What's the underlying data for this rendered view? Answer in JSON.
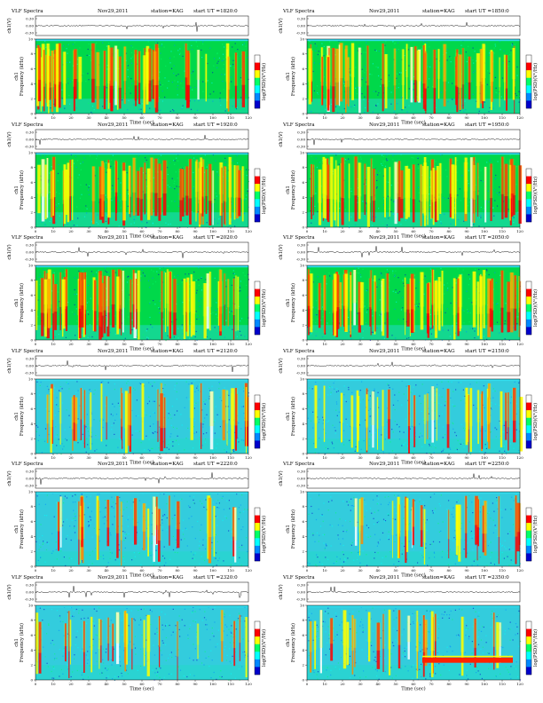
{
  "chart_data": [
    {
      "type": "heatmap",
      "title": "VLF Spectra",
      "date": "Nov29,2011",
      "station": "station=KAG",
      "start_ut": "start UT =1820:0",
      "waveform_ylabel": "ch1(V)",
      "waveform_ticks": [
        "0.30",
        "0.00",
        "-0.30"
      ],
      "ylabel": "Frequency (kHz)",
      "channel_label": "ch1",
      "xlabel": "Time (sec)",
      "x_ticks": [
        "0",
        "10",
        "20",
        "30",
        "40",
        "50",
        "60",
        "70",
        "80",
        "90",
        "100",
        "110",
        "120"
      ],
      "y_ticks": [
        "0",
        "2",
        "4",
        "6",
        "8",
        "10"
      ],
      "xlim": [
        0,
        120
      ],
      "ylim": [
        0,
        10
      ],
      "colorbar_label": "log(PSD)(V²/Hz)",
      "colorbar_colors": [
        "#0000cc",
        "#0088ff",
        "#00ffff",
        "#00ff66",
        "#ffff00",
        "#ff0000",
        "#ffffff"
      ],
      "activity": "high",
      "background_color": "#00d84a"
    },
    {
      "type": "heatmap",
      "title": "VLF Spectra",
      "date": "Nov29,2011",
      "station": "station=KAG",
      "start_ut": "start UT =1850:0",
      "waveform_ylabel": "ch1(V)",
      "waveform_ticks": [
        "0.30",
        "0.00",
        "-0.30"
      ],
      "ylabel": "Frequency (kHz)",
      "channel_label": "ch1",
      "xlabel": "Time (sec)",
      "x_ticks": [
        "0",
        "10",
        "20",
        "30",
        "40",
        "50",
        "60",
        "70",
        "80",
        "90",
        "100",
        "110",
        "120"
      ],
      "y_ticks": [
        "0",
        "2",
        "4",
        "6",
        "8",
        "10"
      ],
      "xlim": [
        0,
        120
      ],
      "ylim": [
        0,
        10
      ],
      "colorbar_label": "log(PSD)(V²/Hz)",
      "colorbar_colors": [
        "#0000cc",
        "#0088ff",
        "#00ffff",
        "#00ff66",
        "#ffff00",
        "#ff0000",
        "#ffffff"
      ],
      "activity": "high",
      "background_color": "#00d84a"
    },
    {
      "type": "heatmap",
      "title": "VLF Spectra",
      "date": "Nov29,2011",
      "station": "station=KAG",
      "start_ut": "start UT =1920:0",
      "waveform_ylabel": "ch1(V)",
      "waveform_ticks": [
        "0.30",
        "0.00",
        "-0.30"
      ],
      "ylabel": "Frequency (kHz)",
      "channel_label": "ch1",
      "xlabel": "Time (sec)",
      "x_ticks": [
        "0",
        "10",
        "20",
        "30",
        "40",
        "50",
        "60",
        "70",
        "80",
        "90",
        "100",
        "110",
        "120"
      ],
      "y_ticks": [
        "0",
        "2",
        "4",
        "6",
        "8",
        "10"
      ],
      "xlim": [
        0,
        120
      ],
      "ylim": [
        0,
        10
      ],
      "colorbar_label": "log(PSD)(V²/Hz)",
      "colorbar_colors": [
        "#0000cc",
        "#0088ff",
        "#00ffff",
        "#00ff66",
        "#ffff00",
        "#ff0000",
        "#ffffff"
      ],
      "activity": "very-high",
      "background_color": "#00d84a"
    },
    {
      "type": "heatmap",
      "title": "VLF Spectra",
      "date": "Nov29,2011",
      "station": "station=KAG",
      "start_ut": "start UT =1950:0",
      "waveform_ylabel": "ch1(V)",
      "waveform_ticks": [
        "0.30",
        "0.00",
        "-0.30"
      ],
      "ylabel": "Frequency (kHz)",
      "channel_label": "ch1",
      "xlabel": "Time (sec)",
      "x_ticks": [
        "0",
        "10",
        "20",
        "30",
        "40",
        "50",
        "60",
        "70",
        "80",
        "90",
        "100",
        "110",
        "120"
      ],
      "y_ticks": [
        "0",
        "2",
        "4",
        "6",
        "8",
        "10"
      ],
      "xlim": [
        0,
        120
      ],
      "ylim": [
        0,
        10
      ],
      "colorbar_label": "log(PSD)(V²/Hz)",
      "colorbar_colors": [
        "#0000cc",
        "#0088ff",
        "#00ffff",
        "#00ff66",
        "#ffff00",
        "#ff0000",
        "#ffffff"
      ],
      "activity": "very-high",
      "background_color": "#00d84a"
    },
    {
      "type": "heatmap",
      "title": "VLF Spectra",
      "date": "Nov29,2011",
      "station": "station=KAG",
      "start_ut": "start UT =2020:0",
      "waveform_ylabel": "ch1(V)",
      "waveform_ticks": [
        "0.30",
        "0.00",
        "-0.30"
      ],
      "ylabel": "Frequency (kHz)",
      "channel_label": "ch1",
      "xlabel": "Time (sec)",
      "x_ticks": [
        "0",
        "10",
        "20",
        "30",
        "40",
        "50",
        "60",
        "70",
        "80",
        "90",
        "100",
        "110",
        "120"
      ],
      "y_ticks": [
        "0",
        "2",
        "4",
        "6",
        "8",
        "10"
      ],
      "xlim": [
        0,
        120
      ],
      "ylim": [
        0,
        10
      ],
      "colorbar_label": "log(PSD)(V²/Hz)",
      "colorbar_colors": [
        "#0000cc",
        "#0088ff",
        "#00ffff",
        "#00ff66",
        "#ffff00",
        "#ff0000",
        "#ffffff"
      ],
      "activity": "very-high",
      "background_color": "#00d84a"
    },
    {
      "type": "heatmap",
      "title": "VLF Spectra",
      "date": "Nov29,2011",
      "station": "station=KAG",
      "start_ut": "start UT =2050:0",
      "waveform_ylabel": "ch1(V)",
      "waveform_ticks": [
        "0.30",
        "0.00",
        "-0.30"
      ],
      "ylabel": "Frequency (kHz)",
      "channel_label": "ch1",
      "xlabel": "Time (sec)",
      "x_ticks": [
        "0",
        "10",
        "20",
        "30",
        "40",
        "50",
        "60",
        "70",
        "80",
        "90",
        "100",
        "110",
        "120"
      ],
      "y_ticks": [
        "0",
        "2",
        "4",
        "6",
        "8",
        "10"
      ],
      "xlim": [
        0,
        120
      ],
      "ylim": [
        0,
        10
      ],
      "colorbar_label": "log(PSD)(V²/Hz)",
      "colorbar_colors": [
        "#0000cc",
        "#0088ff",
        "#00ffff",
        "#00ff66",
        "#ffff00",
        "#ff0000",
        "#ffffff"
      ],
      "activity": "very-high",
      "background_color": "#00d84a"
    },
    {
      "type": "heatmap",
      "title": "VLF Spectra",
      "date": "Nov29,2011",
      "station": "station=KAG",
      "start_ut": "start UT =2120:0",
      "waveform_ylabel": "ch1(V)",
      "waveform_ticks": [
        "0.30",
        "0.00",
        "-0.30"
      ],
      "ylabel": "Frequency (kHz)",
      "channel_label": "ch1",
      "xlabel": "Time (sec)",
      "x_ticks": [
        "0",
        "10",
        "20",
        "30",
        "40",
        "50",
        "60",
        "70",
        "80",
        "90",
        "100",
        "110",
        "120"
      ],
      "y_ticks": [
        "0",
        "2",
        "4",
        "6",
        "8",
        "10"
      ],
      "xlim": [
        0,
        120
      ],
      "ylim": [
        0,
        10
      ],
      "colorbar_label": "log(PSD)(V²/Hz)",
      "colorbar_colors": [
        "#0000cc",
        "#0088ff",
        "#00ffff",
        "#00ff66",
        "#ffff00",
        "#ff0000",
        "#ffffff"
      ],
      "activity": "medium",
      "background_color": "#33ccdd"
    },
    {
      "type": "heatmap",
      "title": "VLF Spectra",
      "date": "Nov29,2011",
      "station": "station=KAG",
      "start_ut": "start UT =2150:0",
      "waveform_ylabel": "ch1(V)",
      "waveform_ticks": [
        "0.30",
        "0.00",
        "-0.30"
      ],
      "ylabel": "Frequency (kHz)",
      "channel_label": "ch1",
      "xlabel": "Time (sec)",
      "x_ticks": [
        "0",
        "10",
        "20",
        "30",
        "40",
        "50",
        "60",
        "70",
        "80",
        "90",
        "100",
        "110",
        "120"
      ],
      "y_ticks": [
        "0",
        "2",
        "4",
        "6",
        "8",
        "10"
      ],
      "xlim": [
        0,
        120
      ],
      "ylim": [
        0,
        10
      ],
      "colorbar_label": "log(PSD)(V²/Hz)",
      "colorbar_colors": [
        "#0000cc",
        "#0088ff",
        "#00ffff",
        "#00ff66",
        "#ffff00",
        "#ff0000",
        "#ffffff"
      ],
      "activity": "medium",
      "background_color": "#33ccdd"
    },
    {
      "type": "heatmap",
      "title": "VLF Spectra",
      "date": "Nov29,2011",
      "station": "station=KAG",
      "start_ut": "start UT =2220:0",
      "waveform_ylabel": "ch1(V)",
      "waveform_ticks": [
        "0.30",
        "0.00",
        "-0.30"
      ],
      "ylabel": "Frequency (kHz)",
      "channel_label": "ch1",
      "xlabel": "Time (sec)",
      "x_ticks": [
        "0",
        "10",
        "20",
        "30",
        "40",
        "50",
        "60",
        "70",
        "80",
        "90",
        "100",
        "110",
        "120"
      ],
      "y_ticks": [
        "0",
        "2",
        "4",
        "6",
        "8",
        "10"
      ],
      "xlim": [
        0,
        120
      ],
      "ylim": [
        0,
        10
      ],
      "colorbar_label": "log(PSD)(V²/Hz)",
      "colorbar_colors": [
        "#0000cc",
        "#0088ff",
        "#00ffff",
        "#00ff66",
        "#ffff00",
        "#ff0000",
        "#ffffff"
      ],
      "activity": "low",
      "background_color": "#33ccdd"
    },
    {
      "type": "heatmap",
      "title": "VLF Spectra",
      "date": "Nov29,2011",
      "station": "station=KAG",
      "start_ut": "start UT =2250:0",
      "waveform_ylabel": "ch1(V)",
      "waveform_ticks": [
        "0.30",
        "0.00",
        "-0.30"
      ],
      "ylabel": "Frequency (kHz)",
      "channel_label": "ch1",
      "xlabel": "Time (sec)",
      "x_ticks": [
        "0",
        "10",
        "20",
        "30",
        "40",
        "50",
        "60",
        "70",
        "80",
        "90",
        "100",
        "110",
        "120"
      ],
      "y_ticks": [
        "0",
        "2",
        "4",
        "6",
        "8",
        "10"
      ],
      "xlim": [
        0,
        120
      ],
      "ylim": [
        0,
        10
      ],
      "colorbar_label": "log(PSD)(V²/Hz)",
      "colorbar_colors": [
        "#0000cc",
        "#0088ff",
        "#00ffff",
        "#00ff66",
        "#ffff00",
        "#ff0000",
        "#ffffff"
      ],
      "activity": "low",
      "background_color": "#33ccdd"
    },
    {
      "type": "heatmap",
      "title": "VLF Spectra",
      "date": "Nov29,2011",
      "station": "station=KAG",
      "start_ut": "start UT =2320:0",
      "waveform_ylabel": "ch1(V)",
      "waveform_ticks": [
        "0.30",
        "0.00",
        "-0.30"
      ],
      "ylabel": "Frequency (kHz)",
      "channel_label": "ch1",
      "xlabel": "Time (sec)",
      "x_ticks": [
        "0",
        "10",
        "20",
        "30",
        "40",
        "50",
        "60",
        "70",
        "80",
        "90",
        "100",
        "110",
        "120"
      ],
      "y_ticks": [
        "0",
        "2",
        "4",
        "6",
        "8",
        "10"
      ],
      "xlim": [
        0,
        120
      ],
      "ylim": [
        0,
        10
      ],
      "colorbar_label": "log(PSD)(V²/Hz)",
      "colorbar_colors": [
        "#0000cc",
        "#0088ff",
        "#00ffff",
        "#00ff66",
        "#ffff00",
        "#ff0000",
        "#ffffff"
      ],
      "activity": "low",
      "background_color": "#33ccdd"
    },
    {
      "type": "heatmap",
      "title": "VLF Spectra",
      "date": "Nov29,2011",
      "station": "station=KAG",
      "start_ut": "start UT =2350:0",
      "waveform_ylabel": "ch1(V)",
      "waveform_ticks": [
        "0.30",
        "0.00",
        "-0.30"
      ],
      "ylabel": "Frequency (kHz)",
      "channel_label": "ch1",
      "xlabel": "Time (sec)",
      "x_ticks": [
        "0",
        "10",
        "20",
        "30",
        "40",
        "50",
        "60",
        "70",
        "80",
        "90",
        "100",
        "110",
        "120"
      ],
      "y_ticks": [
        "0",
        "2",
        "4",
        "6",
        "8",
        "10"
      ],
      "xlim": [
        0,
        120
      ],
      "ylim": [
        0,
        10
      ],
      "colorbar_label": "log(PSD)(V²/Hz)",
      "colorbar_colors": [
        "#0000cc",
        "#0088ff",
        "#00ffff",
        "#00ff66",
        "#ffff00",
        "#ff0000",
        "#ffffff"
      ],
      "activity": "low",
      "background_color": "#33ccdd",
      "feature": {
        "t_start": 65,
        "t_end": 116,
        "f_low": 2.3,
        "f_high": 3.0,
        "color": "#ff2200"
      }
    }
  ]
}
